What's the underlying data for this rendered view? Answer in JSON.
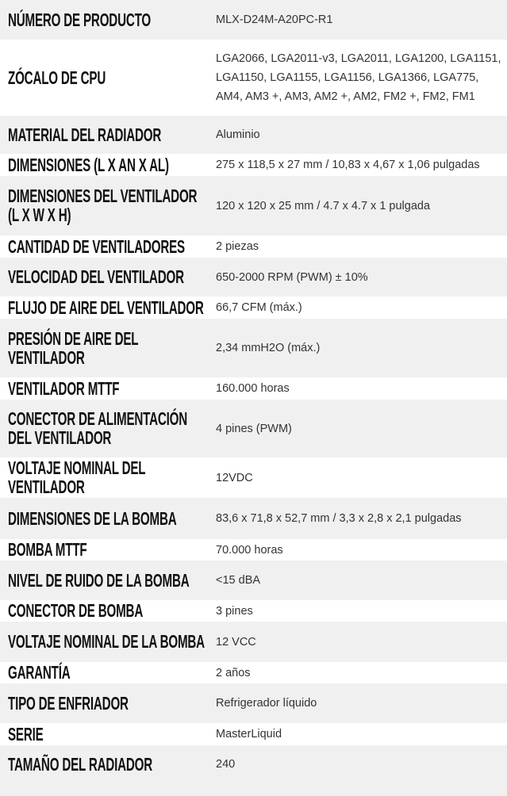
{
  "specs": [
    {
      "label": "NÚMERO DE PRODUCTO",
      "value": "MLX-D24M-A20PC-R1"
    },
    {
      "label": "ZÓCALO DE CPU",
      "value": "LGA2066, LGA2011-v3, LGA2011, LGA1200, LGA1151, LGA1150, LGA1155, LGA1156, LGA1366, LGA775, AM4, AM3 +, AM3, AM2 +, AM2, FM2 +, FM2, FM1"
    },
    {
      "label": "MATERIAL DEL RADIADOR",
      "value": "Aluminio"
    },
    {
      "label": "DIMENSIONES (L X AN X AL)",
      "value": "275 x 118,5 x 27 mm / 10,83 x 4,67 x 1,06 pulgadas"
    },
    {
      "label": "DIMENSIONES DEL VENTILADOR\n(L X W X H)",
      "value": "120 x 120 x 25 mm / 4.7 x 4.7 x 1 pulgada"
    },
    {
      "label": "CANTIDAD DE VENTILADORES",
      "value": "2 piezas"
    },
    {
      "label": "VELOCIDAD DEL VENTILADOR",
      "value": "650-2000 RPM (PWM) ± 10%"
    },
    {
      "label": "FLUJO DE AIRE DEL VENTILADOR",
      "value": "66,7 CFM (máx.)"
    },
    {
      "label": "PRESIÓN DE AIRE DEL\nVENTILADOR",
      "value": "2,34 mmH2O (máx.)"
    },
    {
      "label": "VENTILADOR MTTF",
      "value": "160.000 horas"
    },
    {
      "label": "CONECTOR DE ALIMENTACIÓN\nDEL VENTILADOR",
      "value": "4 pines (PWM)"
    },
    {
      "label": "VOLTAJE NOMINAL DEL\nVENTILADOR",
      "value": "12VDC"
    },
    {
      "label": "DIMENSIONES DE LA BOMBA",
      "value": "83,6 x 71,8 x 52,7 mm / 3,3 x 2,8 x 2,1 pulgadas"
    },
    {
      "label": "BOMBA MTTF",
      "value": "70.000 horas"
    },
    {
      "label": "NIVEL DE RUIDO DE LA BOMBA",
      "value": "<15 dBA"
    },
    {
      "label": "CONECTOR DE BOMBA",
      "value": "3 pines"
    },
    {
      "label": "VOLTAJE NOMINAL DE LA BOMBA",
      "value": "12 VCC"
    },
    {
      "label": "GARANTÍA",
      "value": "2 años"
    },
    {
      "label": "TIPO DE ENFRIADOR",
      "value": "Refrigerador líquido"
    },
    {
      "label": "SERIE",
      "value": "MasterLiquid"
    },
    {
      "label": "TAMAÑO DEL RADIADOR",
      "value": "240"
    }
  ],
  "colors": {
    "row_alt": "#f0f0f0",
    "row": "#ffffff",
    "label": "#111111",
    "value": "#333333"
  }
}
